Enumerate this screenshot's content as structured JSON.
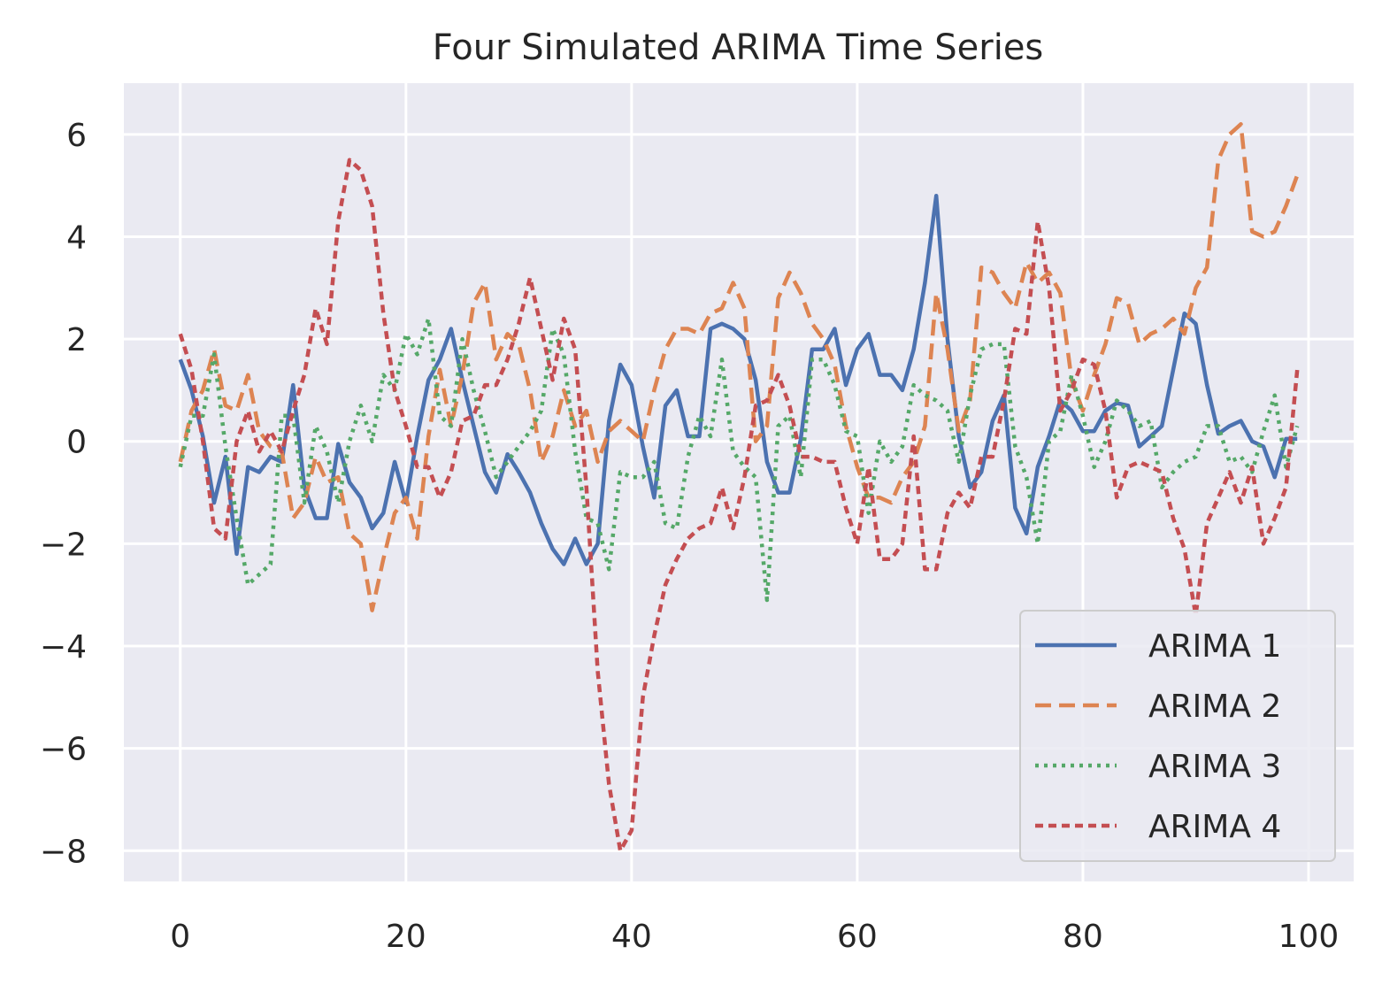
{
  "chart_data": {
    "type": "line",
    "title": "Four Simulated ARIMA Time Series",
    "xlabel": "",
    "ylabel": "",
    "xlim": [
      -5,
      104
    ],
    "ylim": [
      -8.6,
      7.0
    ],
    "xticks": [
      0,
      20,
      40,
      60,
      80,
      100
    ],
    "yticks": [
      6,
      4,
      2,
      0,
      -2,
      -4,
      -6,
      -8
    ],
    "grid": true,
    "legend_position": "lower-right",
    "background": "#eaeaf2",
    "x": [
      0,
      1,
      2,
      3,
      4,
      5,
      6,
      7,
      8,
      9,
      10,
      11,
      12,
      13,
      14,
      15,
      16,
      17,
      18,
      19,
      20,
      21,
      22,
      23,
      24,
      25,
      26,
      27,
      28,
      29,
      30,
      31,
      32,
      33,
      34,
      35,
      36,
      37,
      38,
      39,
      40,
      41,
      42,
      43,
      44,
      45,
      46,
      47,
      48,
      49,
      50,
      51,
      52,
      53,
      54,
      55,
      56,
      57,
      58,
      59,
      60,
      61,
      62,
      63,
      64,
      65,
      66,
      67,
      68,
      69,
      70,
      71,
      72,
      73,
      74,
      75,
      76,
      77,
      78,
      79,
      80,
      81,
      82,
      83,
      84,
      85,
      86,
      87,
      88,
      89,
      90,
      91,
      92,
      93,
      94,
      95,
      96,
      97,
      98,
      99
    ],
    "series": [
      {
        "name": "ARIMA 1",
        "color": "#4c72b0",
        "dash": "solid",
        "values": [
          1.6,
          1.0,
          0.1,
          -1.2,
          -0.3,
          -2.2,
          -0.5,
          -0.6,
          -0.3,
          -0.4,
          1.1,
          -0.9,
          -1.5,
          -1.5,
          -0.05,
          -0.8,
          -1.1,
          -1.7,
          -1.4,
          -0.4,
          -1.2,
          0.1,
          1.2,
          1.6,
          2.2,
          1.2,
          0.3,
          -0.6,
          -1.0,
          -0.25,
          -0.6,
          -1.0,
          -1.6,
          -2.1,
          -2.4,
          -1.9,
          -2.4,
          -2.0,
          0.4,
          1.5,
          1.1,
          -0.1,
          -1.1,
          0.7,
          1.0,
          0.1,
          0.1,
          2.2,
          2.3,
          2.2,
          2.0,
          1.2,
          -0.4,
          -1.0,
          -1.0,
          0.05,
          1.8,
          1.8,
          2.2,
          1.1,
          1.8,
          2.1,
          1.3,
          1.3,
          1.0,
          1.8,
          3.1,
          4.8,
          2.0,
          0.1,
          -0.9,
          -0.6,
          0.4,
          0.9,
          -1.3,
          -1.8,
          -0.5,
          0.1,
          0.8,
          0.6,
          0.2,
          0.2,
          0.6,
          0.75,
          0.7,
          -0.1,
          0.1,
          0.3,
          1.4,
          2.5,
          2.3,
          1.1,
          0.15,
          0.3,
          0.4,
          0.0,
          -0.1,
          -0.7,
          0.05,
          0.05
        ]
      },
      {
        "name": "ARIMA 2",
        "color": "#dd8452",
        "dash": "18 9",
        "values": [
          -0.4,
          0.6,
          1.0,
          1.8,
          0.7,
          0.6,
          1.3,
          0.2,
          -0.1,
          -0.2,
          -1.5,
          -1.2,
          -0.3,
          -0.8,
          -0.7,
          -1.8,
          -2.0,
          -3.3,
          -2.3,
          -1.4,
          -1.1,
          -1.9,
          0.1,
          1.4,
          0.3,
          1.3,
          2.7,
          3.1,
          1.6,
          2.1,
          1.9,
          1.0,
          -0.4,
          0.1,
          1.0,
          0.3,
          0.6,
          -0.4,
          0.2,
          0.4,
          0.2,
          0.0,
          1.0,
          1.8,
          2.2,
          2.2,
          2.1,
          2.5,
          2.6,
          3.1,
          2.6,
          0.0,
          0.3,
          2.8,
          3.3,
          2.9,
          2.3,
          2.0,
          1.5,
          0.3,
          -0.5,
          -1.1,
          -1.1,
          -1.2,
          -0.7,
          -0.4,
          0.3,
          2.9,
          1.8,
          0.2,
          0.8,
          3.4,
          3.3,
          2.9,
          2.6,
          3.5,
          3.1,
          3.3,
          2.9,
          1.2,
          0.6,
          1.3,
          1.9,
          2.8,
          2.7,
          1.9,
          2.1,
          2.2,
          2.4,
          2.1,
          3.0,
          3.4,
          5.5,
          6.0,
          6.2,
          4.1,
          4.0,
          4.1,
          4.6,
          5.2
        ]
      },
      {
        "name": "ARIMA 3",
        "color": "#55a868",
        "dash": "4 6",
        "values": [
          -0.5,
          0.5,
          0.5,
          1.7,
          -0.1,
          -1.5,
          -2.8,
          -2.6,
          -2.4,
          0.5,
          0.5,
          -1.2,
          0.3,
          -0.2,
          -1.2,
          0.0,
          0.7,
          0.0,
          1.3,
          1.0,
          2.1,
          1.7,
          2.4,
          0.5,
          0.3,
          2.0,
          1.0,
          0.2,
          -0.7,
          -0.4,
          -0.1,
          0.2,
          0.6,
          2.2,
          1.7,
          -0.2,
          -1.5,
          -1.6,
          -2.5,
          -0.6,
          -0.7,
          -0.7,
          -0.4,
          -1.6,
          -1.7,
          -0.3,
          0.5,
          0.1,
          1.6,
          -0.2,
          -0.5,
          -0.7,
          -3.1,
          0.3,
          0.5,
          -0.7,
          1.6,
          1.6,
          1.1,
          0.2,
          0.1,
          -1.4,
          0.0,
          -0.4,
          -0.1,
          1.1,
          0.9,
          0.8,
          0.6,
          -0.4,
          0.9,
          1.8,
          1.9,
          1.9,
          -0.1,
          -0.7,
          -2.0,
          0.0,
          0.2,
          1.3,
          0.5,
          -0.5,
          0.0,
          0.8,
          0.6,
          0.3,
          0.4,
          -0.9,
          -0.6,
          -0.4,
          -0.3,
          0.3,
          0.3,
          -0.4,
          -0.3,
          -0.6,
          0.2,
          0.9,
          -0.5,
          0.3
        ]
      },
      {
        "name": "ARIMA 4",
        "color": "#c44e52",
        "dash": "9 6",
        "values": [
          2.1,
          1.4,
          0.0,
          -1.7,
          -1.9,
          0.0,
          0.6,
          -0.2,
          0.2,
          -0.2,
          0.6,
          1.3,
          2.6,
          1.9,
          4.3,
          5.5,
          5.3,
          4.6,
          2.5,
          1.0,
          0.3,
          -0.5,
          -0.5,
          -1.1,
          -0.6,
          0.4,
          0.5,
          1.1,
          1.1,
          1.6,
          2.3,
          3.2,
          2.2,
          1.2,
          2.4,
          1.8,
          -0.9,
          -4.5,
          -6.7,
          -8.0,
          -7.6,
          -5.0,
          -3.8,
          -2.8,
          -2.3,
          -1.9,
          -1.7,
          -1.6,
          -0.9,
          -1.7,
          -0.7,
          0.7,
          0.8,
          1.3,
          0.7,
          -0.3,
          -0.3,
          -0.4,
          -0.4,
          -1.3,
          -2.0,
          -0.5,
          -2.3,
          -2.3,
          -2.0,
          0.1,
          -2.5,
          -2.5,
          -1.4,
          -1.0,
          -1.3,
          -0.3,
          -0.3,
          0.8,
          2.2,
          2.1,
          4.3,
          3.0,
          0.6,
          1.0,
          1.6,
          1.5,
          0.6,
          -1.1,
          -0.5,
          -0.4,
          -0.5,
          -0.6,
          -1.5,
          -2.1,
          -3.4,
          -1.6,
          -1.1,
          -0.6,
          -1.2,
          -0.5,
          -2.0,
          -1.5,
          -0.9,
          1.4
        ]
      }
    ]
  }
}
